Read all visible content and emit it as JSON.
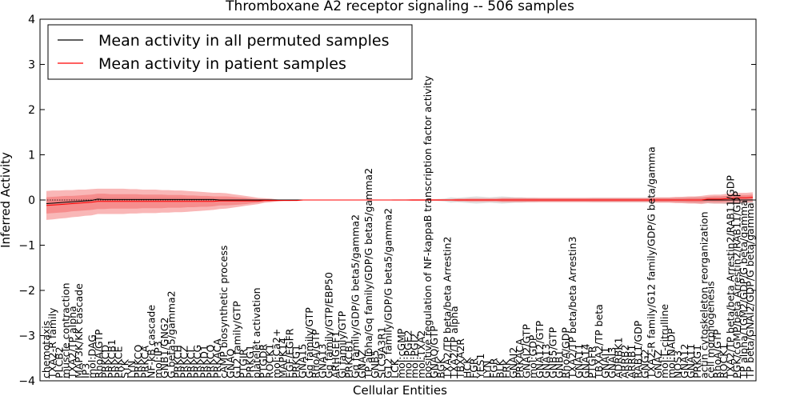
{
  "chart_data": {
    "type": "line",
    "title": "Thromboxane A2 receptor signaling -- 506 samples",
    "xlabel": "Cellular Entities",
    "ylabel": "Inferred Activity",
    "ylim": [
      -4,
      4
    ],
    "yticks": [
      -4,
      -3,
      -2,
      -1,
      0,
      1,
      2,
      3,
      4
    ],
    "ytick_labels": [
      "−4",
      "−3",
      "−2",
      "−1",
      "0",
      "1",
      "2",
      "3",
      "4"
    ],
    "grid": false,
    "legend_position": "top-left",
    "series": [
      {
        "name": "Mean activity in all permuted samples",
        "color": "#000000",
        "values": [
          -0.08,
          -0.07,
          -0.06,
          -0.05,
          -0.04,
          -0.03,
          -0.02,
          -0.01,
          0.02,
          0.01,
          0.01,
          0.01,
          0.01,
          0.01,
          0.01,
          0.01,
          0.01,
          0.01,
          0.01,
          0.01,
          0.01,
          0.01,
          0.01,
          0.01,
          0.01,
          0.01,
          0.01,
          0.0,
          0.0,
          0.0,
          0.0,
          0.0,
          0.0,
          0.0,
          0.0,
          0.0,
          0.0,
          0.0,
          0.0,
          0.0,
          0.0,
          0.0,
          0.0,
          0.0,
          0.0,
          0.0,
          0.0,
          0.0,
          0.0,
          0.0,
          0.0,
          0.0,
          0.0,
          0.0,
          0.0,
          0.0,
          0.0,
          0.0,
          0.0,
          0.0,
          0.0,
          0.0,
          0.0,
          0.0,
          0.0,
          0.0,
          0.0,
          0.0,
          0.0,
          0.0,
          0.0,
          0.0,
          0.0,
          0.0,
          0.0,
          0.0,
          0.0,
          0.0,
          0.0,
          0.0,
          0.0,
          0.0,
          0.0,
          0.0,
          0.0,
          0.0,
          0.0,
          0.0,
          0.0,
          0.0,
          0.0,
          0.0,
          0.0,
          0.0,
          0.0,
          0.0,
          0.0,
          0.0,
          0.0,
          0.0,
          0.0,
          0.0,
          0.0,
          0.0,
          0.0,
          0.0,
          0.0,
          0.0,
          0.0,
          0.0,
          0.0
        ]
      },
      {
        "name": "Mean activity in patient samples",
        "color": "#ff0000",
        "values": [
          -0.12,
          -0.11,
          -0.1,
          -0.09,
          -0.08,
          -0.07,
          -0.06,
          -0.05,
          -0.03,
          -0.03,
          -0.03,
          -0.03,
          -0.03,
          -0.03,
          -0.03,
          -0.03,
          -0.03,
          -0.03,
          -0.03,
          -0.03,
          -0.03,
          -0.03,
          -0.03,
          -0.03,
          -0.03,
          -0.03,
          -0.03,
          -0.02,
          -0.02,
          -0.02,
          -0.02,
          -0.02,
          -0.02,
          -0.02,
          -0.01,
          -0.01,
          -0.01,
          -0.01,
          -0.01,
          -0.01,
          0.0,
          0.0,
          0.0,
          0.0,
          0.0,
          0.0,
          0.0,
          0.0,
          0.0,
          0.0,
          0.0,
          0.0,
          0.0,
          0.0,
          0.0,
          0.0,
          0.0,
          0.0,
          0.0,
          0.0,
          0.0,
          0.0,
          0.0,
          0.0,
          0.0,
          0.0,
          0.0,
          0.0,
          0.0,
          0.0,
          0.0,
          0.0,
          0.0,
          0.0,
          0.0,
          0.0,
          0.0,
          0.0,
          0.0,
          0.0,
          0.0,
          0.0,
          0.0,
          0.0,
          0.0,
          0.0,
          0.0,
          0.0,
          0.0,
          0.0,
          0.0,
          0.0,
          0.0,
          0.0,
          0.0,
          0.0,
          0.0,
          0.0,
          0.0,
          0.0,
          0.0,
          0.0,
          0.0,
          0.02,
          0.02,
          0.02,
          0.03,
          0.04,
          0.05,
          0.05,
          0.06
        ]
      }
    ],
    "permuted_band_halfwidth": [
      0.06,
      0.06,
      0.06,
      0.06,
      0.06,
      0.05,
      0.05,
      0.05,
      0.05,
      0.05,
      0.05,
      0.05,
      0.05,
      0.05,
      0.05,
      0.05,
      0.05,
      0.05,
      0.05,
      0.05,
      0.05,
      0.05,
      0.04,
      0.04,
      0.04,
      0.04,
      0.04,
      0.03,
      0.03,
      0.03,
      0.03,
      0.03,
      0.02,
      0.02,
      0.02,
      0.02,
      0.01,
      0.01,
      0.01,
      0.01,
      0.005,
      0.005,
      0.005,
      0.005,
      0.005,
      0.005,
      0.005,
      0.005,
      0.005,
      0.005,
      0.005,
      0.005,
      0.005,
      0.005,
      0.01,
      0.01,
      0.01,
      0.01,
      0.01,
      0.01,
      0.01,
      0.02,
      0.03,
      0.06,
      0.05,
      0.06,
      0.07,
      0.08,
      0.07,
      0.06,
      0.07,
      0.08,
      0.07,
      0.06,
      0.06,
      0.05,
      0.05,
      0.04,
      0.04,
      0.04,
      0.04,
      0.04,
      0.04,
      0.04,
      0.04,
      0.05,
      0.05,
      0.05,
      0.05,
      0.05,
      0.05,
      0.05,
      0.05,
      0.05,
      0.05,
      0.05,
      0.05,
      0.05,
      0.05,
      0.06,
      0.06,
      0.07,
      0.07,
      0.07,
      0.08,
      0.08,
      0.09,
      0.09,
      0.09,
      0.08,
      0.08
    ],
    "patient_outer_halfwidth": [
      0.32,
      0.32,
      0.31,
      0.31,
      0.3,
      0.3,
      0.29,
      0.29,
      0.28,
      0.28,
      0.28,
      0.28,
      0.28,
      0.27,
      0.27,
      0.26,
      0.26,
      0.26,
      0.25,
      0.25,
      0.24,
      0.24,
      0.23,
      0.22,
      0.21,
      0.2,
      0.19,
      0.18,
      0.17,
      0.15,
      0.13,
      0.11,
      0.09,
      0.07,
      0.05,
      0.04,
      0.02,
      0.01,
      0.01,
      0.005,
      0.005,
      0.005,
      0.005,
      0.005,
      0.005,
      0.005,
      0.005,
      0.005,
      0.005,
      0.005,
      0.005,
      0.005,
      0.005,
      0.005,
      0.01,
      0.01,
      0.01,
      0.02,
      0.02,
      0.02,
      0.02,
      0.02,
      0.02,
      0.02,
      0.03,
      0.03,
      0.04,
      0.04,
      0.04,
      0.04,
      0.04,
      0.05,
      0.05,
      0.05,
      0.05,
      0.05,
      0.05,
      0.05,
      0.05,
      0.05,
      0.05,
      0.05,
      0.05,
      0.05,
      0.05,
      0.05,
      0.05,
      0.05,
      0.05,
      0.05,
      0.05,
      0.05,
      0.05,
      0.05,
      0.05,
      0.06,
      0.06,
      0.06,
      0.07,
      0.07,
      0.08,
      0.08,
      0.09,
      0.09,
      0.1,
      0.1,
      0.11,
      0.11,
      0.11,
      0.11,
      0.11
    ],
    "patient_inner_halfwidth": [
      0.18,
      0.18,
      0.18,
      0.18,
      0.17,
      0.17,
      0.17,
      0.17,
      0.17,
      0.17,
      0.16,
      0.16,
      0.16,
      0.16,
      0.16,
      0.15,
      0.15,
      0.15,
      0.15,
      0.14,
      0.14,
      0.14,
      0.13,
      0.13,
      0.12,
      0.12,
      0.11,
      0.1,
      0.1,
      0.09,
      0.08,
      0.07,
      0.05,
      0.04,
      0.03,
      0.02,
      0.01,
      0.005,
      0.005,
      0.003,
      0.003,
      0.003,
      0.003,
      0.003,
      0.003,
      0.003,
      0.003,
      0.003,
      0.003,
      0.003,
      0.003,
      0.003,
      0.003,
      0.003,
      0.005,
      0.005,
      0.005,
      0.01,
      0.01,
      0.01,
      0.01,
      0.01,
      0.01,
      0.01,
      0.02,
      0.02,
      0.02,
      0.02,
      0.02,
      0.02,
      0.02,
      0.03,
      0.03,
      0.03,
      0.03,
      0.03,
      0.03,
      0.03,
      0.03,
      0.03,
      0.03,
      0.03,
      0.03,
      0.03,
      0.03,
      0.03,
      0.03,
      0.03,
      0.03,
      0.03,
      0.03,
      0.03,
      0.03,
      0.03,
      0.03,
      0.04,
      0.04,
      0.04,
      0.04,
      0.04,
      0.05,
      0.05,
      0.05,
      0.05,
      0.06,
      0.06,
      0.06,
      0.06,
      0.06,
      0.06,
      0.06
    ],
    "entity_labels": [
      "chemotaxis",
      "TXA2-R family",
      "PLCB2",
      "muscle contraction",
      "TXA2/TP alpha",
      "MAP3K/KK cascade",
      "IP3",
      "mol:DAG",
      "RhoA/GTP",
      "PRKCD",
      "PRKCB1",
      "PRKCE",
      "SYK",
      "LYN",
      "PRKCQ",
      "PRKCA",
      "NF-kB cascade",
      "mol:IP3",
      "GNB1/GNG2",
      "G beta5/gamma2",
      "PRKCH",
      "PRKCZ",
      "PRKCI",
      "PRKCG",
      "PRKD1",
      "PRKCQ",
      "PRKACA",
      "cAMP biosynthetic process",
      "GNAQ",
      "G12 family/GTP",
      "PTGIR",
      "PRKG1",
      "platelet activation",
      "PTGDR",
      "ROCK1",
      "mol:Ca2+",
      "MAPK14",
      "EGF/EGFR",
      "PRKG1",
      "GNA15",
      "Gq family/GTP",
      "RhoA/GTP",
      "GNA13",
      "Gq family/GTP/EBP50",
      "ARHGEF1",
      "Gi family/GTP",
      "PRKCB1",
      "Gq family/GDP/G beta5/gamma2",
      "GNAZ",
      "TP alpha/Gq family/GDP/G beta5/gamma2",
      "GNB5",
      "SLC9A3R1",
      "G12 family/GDP/G beta5/gamma2",
      "LCK",
      "mol:cGMP",
      "mol:PGE2",
      "mol:PGI2",
      "mol:TXA2",
      "positive regulation of NF-kappaB transcription factor activity",
      "GNAQ/GTP",
      "BGK",
      "TXA2/TP beta/beta Arrestin2",
      "TXA2/TP alpha",
      "TBXA2R",
      "HCK",
      "FGR",
      "YES1",
      "LYN",
      "FGR",
      "BLK",
      "FRK",
      "GNAI2",
      "PRKACA",
      "GNAI2/GTP",
      "mol:GDP",
      "GNA12/GTP",
      "GNA13",
      "GNB5/GTP",
      "GNB1",
      "RhoA/GDP",
      "TXA2/TP beta/beta Arrestin3",
      "GNA11",
      "GNA14",
      "PTGFR",
      "TBXA2/TP beta",
      "GNAI1",
      "GNAI3",
      "ADRBK1",
      "ARRB2",
      "ARRB1",
      "RAB11/GDP",
      "GNG2",
      "TXA2-R family/G12 family/GDP/G beta/gamma",
      "GNAZ",
      "mol:L-citrulline",
      "mol:NADP",
      "NOS3",
      "GNA12",
      "GNA11",
      "PRKG1",
      "actin cytoskeleton reorganization",
      "cell morphogenesis",
      "RhoA/GTP",
      "ROCK1",
      "TXA2/TP beta/beta Arrestin2/RAB11/GDP",
      "PGK/cGMP/beta Arrestin2/RAB11/GDP",
      "TP alpha/TGM2/GDP/G beta/gamma",
      "TP beta/GNAI2/GDP/G beta/gamma"
    ]
  },
  "legend_title_visible": false
}
